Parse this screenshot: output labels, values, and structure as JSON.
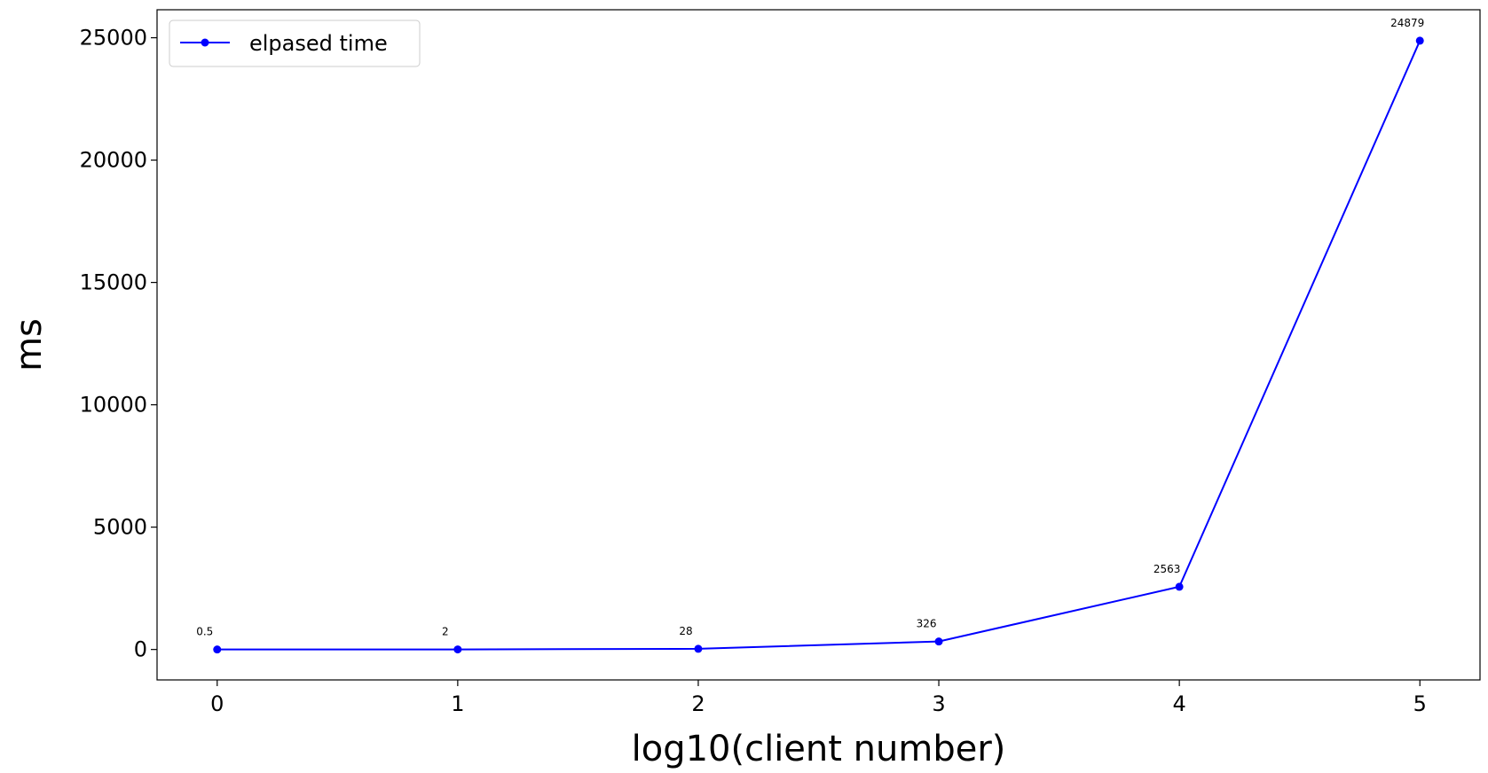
{
  "chart_data": {
    "type": "line",
    "xlabel": "log10(client number)",
    "ylabel": "ms",
    "xlim": [
      -0.25,
      5.25
    ],
    "ylim": [
      -1244,
      26144
    ],
    "x_ticks": [
      0,
      1,
      2,
      3,
      4,
      5
    ],
    "y_ticks": [
      0,
      5000,
      10000,
      15000,
      20000,
      25000
    ],
    "grid": false,
    "legend": {
      "position": "top-left"
    },
    "series": [
      {
        "name": "elpased time",
        "color": "#0000ff",
        "marker": "circle",
        "x": [
          0,
          1,
          2,
          3,
          4,
          5
        ],
        "y": [
          0.5,
          2,
          28,
          326,
          2563,
          24879
        ],
        "labels": [
          "0.5",
          "2",
          "28",
          "326",
          "2563",
          "24879"
        ]
      }
    ]
  }
}
